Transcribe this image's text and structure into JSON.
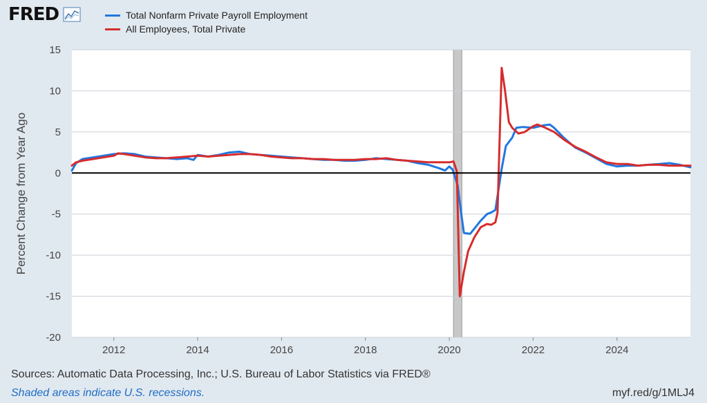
{
  "logo": {
    "text": "FRED",
    "icon": "chart-line-icon"
  },
  "chart_data": {
    "type": "line",
    "title": "",
    "xlabel": "",
    "ylabel": "Percent Change from Year Ago",
    "xlim": [
      2011.0,
      2025.75
    ],
    "ylim": [
      -20,
      15
    ],
    "yticks": [
      15,
      10,
      5,
      0,
      -5,
      -10,
      -15,
      -20
    ],
    "xticks": [
      2012,
      2014,
      2016,
      2018,
      2020,
      2022,
      2024
    ],
    "grid": true,
    "legend_position": "top-left",
    "recessions": [
      [
        2020.1,
        2020.3
      ]
    ],
    "series": [
      {
        "name": "Total Nonfarm Private Payroll Employment",
        "color": "#1f77e0",
        "points": [
          [
            2011.0,
            0.3
          ],
          [
            2011.1,
            1.2
          ],
          [
            2011.25,
            1.7
          ],
          [
            2011.5,
            1.9
          ],
          [
            2011.75,
            2.1
          ],
          [
            2012.0,
            2.3
          ],
          [
            2012.25,
            2.4
          ],
          [
            2012.5,
            2.3
          ],
          [
            2012.75,
            2.0
          ],
          [
            2013.0,
            1.9
          ],
          [
            2013.25,
            1.8
          ],
          [
            2013.5,
            1.7
          ],
          [
            2013.75,
            1.8
          ],
          [
            2013.9,
            1.6
          ],
          [
            2014.0,
            2.2
          ],
          [
            2014.25,
            2.0
          ],
          [
            2014.5,
            2.2
          ],
          [
            2014.75,
            2.5
          ],
          [
            2015.0,
            2.6
          ],
          [
            2015.25,
            2.3
          ],
          [
            2015.5,
            2.2
          ],
          [
            2015.75,
            2.1
          ],
          [
            2016.0,
            2.0
          ],
          [
            2016.25,
            1.9
          ],
          [
            2016.5,
            1.8
          ],
          [
            2016.75,
            1.7
          ],
          [
            2017.0,
            1.6
          ],
          [
            2017.25,
            1.6
          ],
          [
            2017.5,
            1.5
          ],
          [
            2017.75,
            1.5
          ],
          [
            2018.0,
            1.6
          ],
          [
            2018.25,
            1.8
          ],
          [
            2018.5,
            1.7
          ],
          [
            2018.75,
            1.6
          ],
          [
            2019.0,
            1.5
          ],
          [
            2019.25,
            1.2
          ],
          [
            2019.5,
            1.0
          ],
          [
            2019.75,
            0.6
          ],
          [
            2019.9,
            0.3
          ],
          [
            2020.0,
            0.8
          ],
          [
            2020.08,
            0.4
          ],
          [
            2020.2,
            -1.5
          ],
          [
            2020.3,
            -5.5
          ],
          [
            2020.35,
            -7.3
          ],
          [
            2020.5,
            -7.4
          ],
          [
            2020.75,
            -5.8
          ],
          [
            2020.9,
            -5.0
          ],
          [
            2021.0,
            -4.8
          ],
          [
            2021.1,
            -4.5
          ],
          [
            2021.25,
            0.5
          ],
          [
            2021.35,
            3.3
          ],
          [
            2021.5,
            4.3
          ],
          [
            2021.6,
            5.5
          ],
          [
            2021.75,
            5.6
          ],
          [
            2022.0,
            5.5
          ],
          [
            2022.25,
            5.8
          ],
          [
            2022.4,
            5.9
          ],
          [
            2022.5,
            5.5
          ],
          [
            2022.75,
            4.2
          ],
          [
            2023.0,
            3.1
          ],
          [
            2023.25,
            2.5
          ],
          [
            2023.5,
            1.8
          ],
          [
            2023.75,
            1.1
          ],
          [
            2024.0,
            0.8
          ],
          [
            2024.25,
            0.9
          ],
          [
            2024.5,
            0.9
          ],
          [
            2024.75,
            1.0
          ],
          [
            2025.0,
            1.1
          ],
          [
            2025.25,
            1.2
          ],
          [
            2025.5,
            1.0
          ],
          [
            2025.75,
            0.7
          ]
        ]
      },
      {
        "name": "All Employees, Total Private",
        "color": "#d62c2c",
        "points": [
          [
            2011.0,
            0.9
          ],
          [
            2011.1,
            1.3
          ],
          [
            2011.25,
            1.5
          ],
          [
            2011.5,
            1.7
          ],
          [
            2011.75,
            1.9
          ],
          [
            2012.0,
            2.1
          ],
          [
            2012.1,
            2.4
          ],
          [
            2012.25,
            2.3
          ],
          [
            2012.5,
            2.1
          ],
          [
            2012.75,
            1.9
          ],
          [
            2013.0,
            1.8
          ],
          [
            2013.25,
            1.8
          ],
          [
            2013.5,
            1.9
          ],
          [
            2013.75,
            2.0
          ],
          [
            2014.0,
            2.1
          ],
          [
            2014.25,
            2.0
          ],
          [
            2014.5,
            2.1
          ],
          [
            2014.75,
            2.2
          ],
          [
            2015.0,
            2.3
          ],
          [
            2015.25,
            2.3
          ],
          [
            2015.5,
            2.2
          ],
          [
            2015.75,
            2.0
          ],
          [
            2016.0,
            1.9
          ],
          [
            2016.25,
            1.8
          ],
          [
            2016.5,
            1.8
          ],
          [
            2016.75,
            1.7
          ],
          [
            2017.0,
            1.7
          ],
          [
            2017.25,
            1.6
          ],
          [
            2017.5,
            1.6
          ],
          [
            2017.75,
            1.6
          ],
          [
            2018.0,
            1.7
          ],
          [
            2018.25,
            1.7
          ],
          [
            2018.5,
            1.8
          ],
          [
            2018.75,
            1.6
          ],
          [
            2019.0,
            1.5
          ],
          [
            2019.25,
            1.4
          ],
          [
            2019.5,
            1.3
          ],
          [
            2019.75,
            1.3
          ],
          [
            2020.0,
            1.3
          ],
          [
            2020.1,
            1.4
          ],
          [
            2020.18,
            0.2
          ],
          [
            2020.25,
            -15.0
          ],
          [
            2020.35,
            -12.0
          ],
          [
            2020.45,
            -9.5
          ],
          [
            2020.6,
            -7.8
          ],
          [
            2020.75,
            -6.6
          ],
          [
            2020.9,
            -6.2
          ],
          [
            2021.0,
            -6.3
          ],
          [
            2021.1,
            -6.0
          ],
          [
            2021.15,
            -4.8
          ],
          [
            2021.25,
            12.8
          ],
          [
            2021.33,
            10.0
          ],
          [
            2021.42,
            6.2
          ],
          [
            2021.5,
            5.5
          ],
          [
            2021.65,
            4.8
          ],
          [
            2021.8,
            5.0
          ],
          [
            2022.0,
            5.7
          ],
          [
            2022.1,
            5.9
          ],
          [
            2022.25,
            5.6
          ],
          [
            2022.5,
            5.0
          ],
          [
            2022.75,
            4.0
          ],
          [
            2023.0,
            3.2
          ],
          [
            2023.25,
            2.6
          ],
          [
            2023.5,
            1.9
          ],
          [
            2023.75,
            1.3
          ],
          [
            2024.0,
            1.1
          ],
          [
            2024.25,
            1.1
          ],
          [
            2024.5,
            0.9
          ],
          [
            2024.75,
            1.0
          ],
          [
            2025.0,
            1.0
          ],
          [
            2025.25,
            0.9
          ],
          [
            2025.5,
            0.9
          ],
          [
            2025.75,
            0.9
          ]
        ]
      }
    ]
  },
  "footer": {
    "sources": "Sources: Automatic Data Processing, Inc.; U.S. Bureau of Labor Statistics via FRED®",
    "note": "Shaded areas indicate U.S. recessions.",
    "link": "myf.red/g/1MLJ4"
  }
}
